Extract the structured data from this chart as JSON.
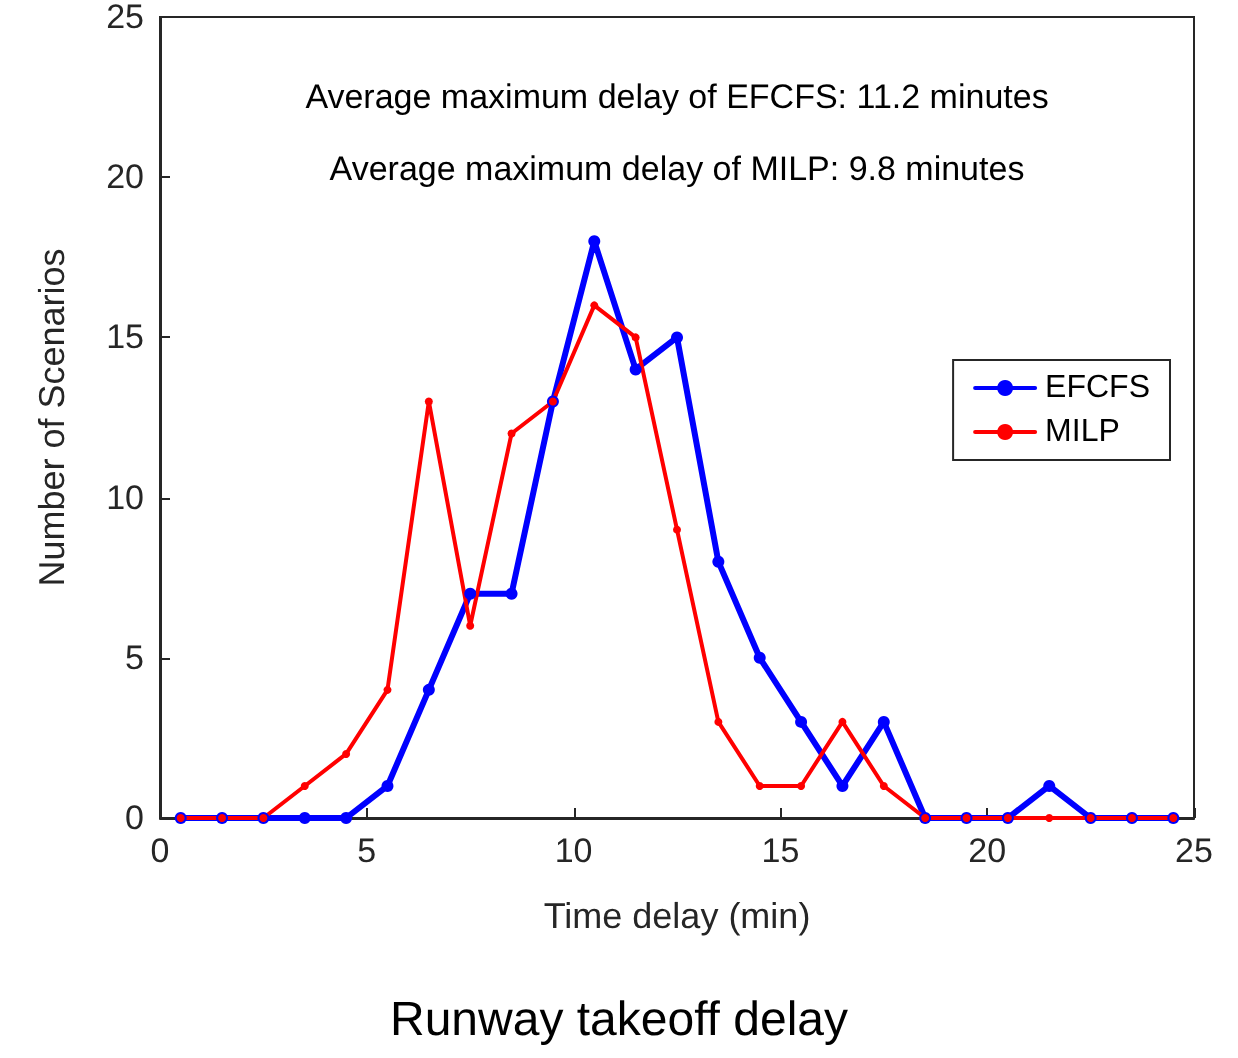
{
  "chart_data": {
    "type": "line",
    "title": "Runway takeoff delay",
    "xlabel": "Time delay (min)",
    "ylabel": "Number of Scenarios",
    "annotations": [
      "Average maximum delay of EFCFS: 11.2 minutes",
      "Average maximum delay of MILP: 9.8 minutes"
    ],
    "x": [
      0.5,
      1.5,
      2.5,
      3.5,
      4.5,
      5.5,
      6.5,
      7.5,
      8.5,
      9.5,
      10.5,
      11.5,
      12.5,
      13.5,
      14.5,
      15.5,
      16.5,
      17.5,
      18.5,
      19.5,
      20.5,
      21.5,
      22.5,
      23.5,
      24.5
    ],
    "series": [
      {
        "name": "EFCFS",
        "color": "#0000ff",
        "values": [
          0,
          0,
          0,
          0,
          0,
          1,
          4,
          7,
          7,
          13,
          18,
          14,
          15,
          8,
          5,
          3,
          1,
          3,
          0,
          0,
          0,
          1,
          0,
          0,
          0
        ]
      },
      {
        "name": "MILP",
        "color": "#ff0000",
        "values": [
          0,
          0,
          0,
          1,
          2,
          4,
          13,
          6,
          12,
          13,
          16,
          15,
          9,
          3,
          1,
          1,
          3,
          1,
          0,
          0,
          0,
          0,
          0,
          0,
          0
        ]
      }
    ],
    "xlim": [
      0,
      25
    ],
    "xticks": [
      0,
      5,
      10,
      15,
      20,
      25
    ],
    "ylim": [
      0,
      25
    ],
    "yticks": [
      0,
      5,
      10,
      15,
      20,
      25
    ],
    "grid": false,
    "legend": "right",
    "marker": "circle",
    "line_style": "solid"
  }
}
